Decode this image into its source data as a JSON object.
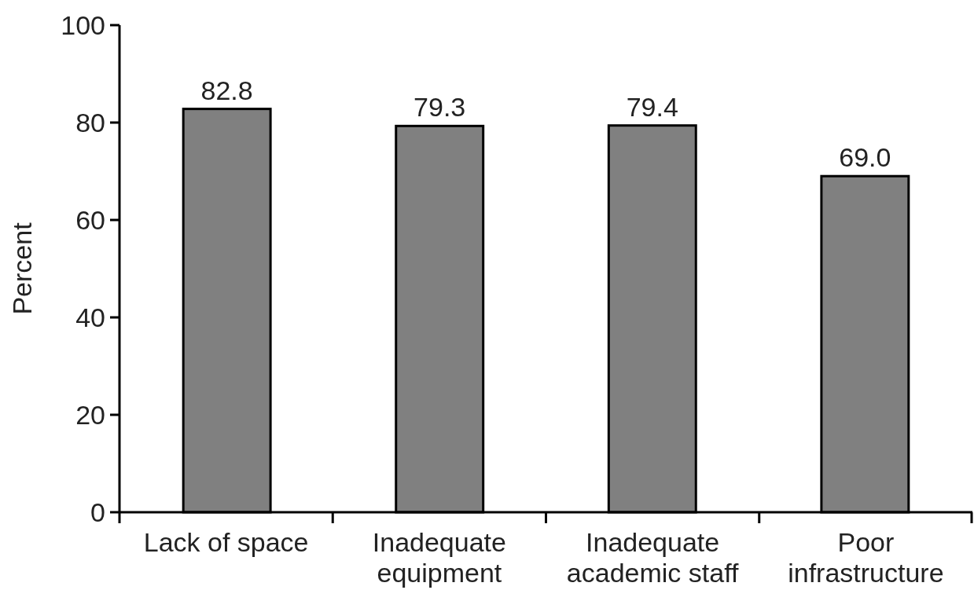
{
  "chart_data": {
    "type": "bar",
    "ylabel": "Percent",
    "categories": [
      "Lack of space",
      "Inadequate equipment",
      "Inadequate academic staff",
      "Poor infrastructure"
    ],
    "values": [
      82.8,
      79.3,
      79.4,
      69.0
    ],
    "value_labels": [
      "82.8",
      "79.3",
      "79.4",
      "69.0"
    ],
    "color": "#808080",
    "ylim": [
      0,
      100
    ],
    "yticks": [
      0,
      20,
      40,
      60,
      80,
      100
    ],
    "grid": false
  }
}
